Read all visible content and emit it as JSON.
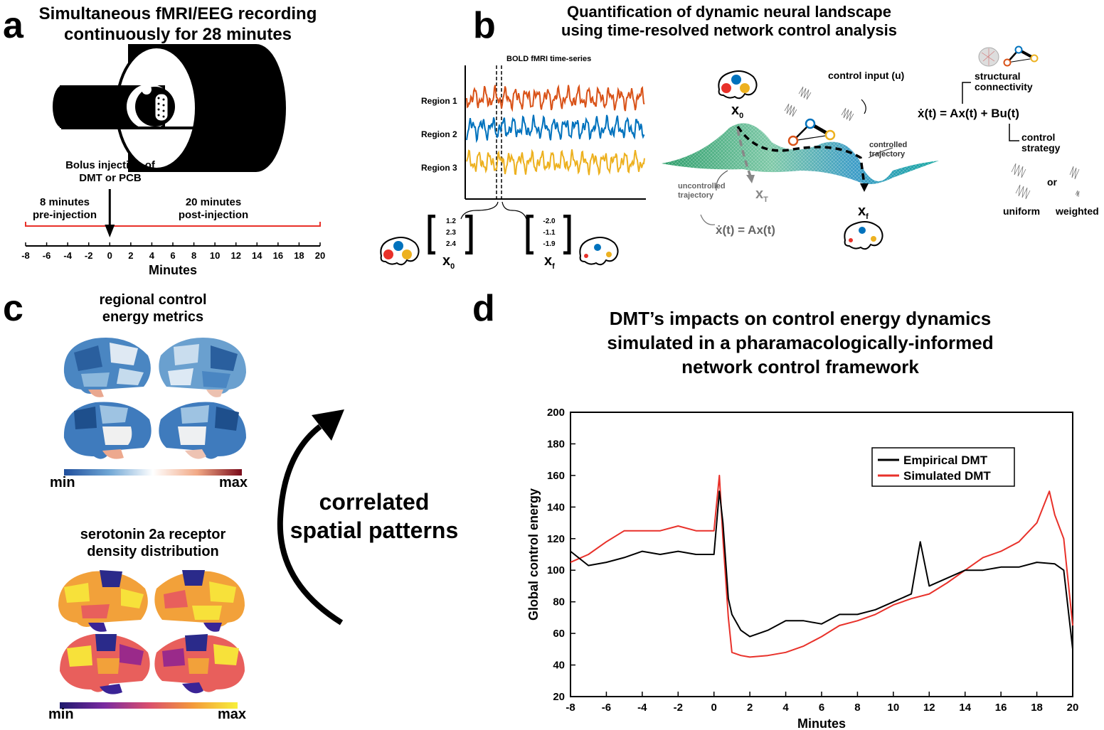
{
  "panel_a": {
    "letter": "a",
    "title_line1": "Simultaneous fMRI/EEG recording",
    "title_line2": "continuously for 28 minutes",
    "injection_line1": "Bolus injection of",
    "injection_line2": "DMT or PCB",
    "pre_line1": "8 minutes",
    "pre_line2": "pre-injection",
    "post_line1": "20 minutes",
    "post_line2": "post-injection",
    "ticks": [
      "-8",
      "-6",
      "-4",
      "-2",
      "0",
      "2",
      "4",
      "6",
      "8",
      "10",
      "12",
      "14",
      "16",
      "18",
      "20"
    ],
    "xlabel": "Minutes",
    "timeline_color": "#e8312a"
  },
  "panel_b": {
    "letter": "b",
    "title_line1": "Quantification of dynamic neural landscape",
    "title_line2": "using time-resolved network control analysis",
    "bold_label": "BOLD fMRI time-series",
    "regions": [
      {
        "label": "Region 1",
        "color": "#d95319"
      },
      {
        "label": "Region 2",
        "color": "#0072bd"
      },
      {
        "label": "Region 3",
        "color": "#edb120"
      }
    ],
    "x0_values": [
      "1.2",
      "2.3",
      "2.4"
    ],
    "xf_values": [
      "-2.0",
      "-1.1",
      "-1.9"
    ],
    "x0_label": "x",
    "x0_sub": "0",
    "xf_label": "x",
    "xf_sub": "f",
    "xT_label": "x",
    "xT_sub": "T",
    "control_input": "control input (u)",
    "controlled_line1": "controlled",
    "controlled_line2": "trajectory",
    "uncontrolled_line1": "uncontrolled",
    "uncontrolled_line2": "trajectory",
    "eq_uncontrolled": "ẋ(t) = Ax(t)",
    "eq_main": "ẋ(t) = Ax(t) + Bu(t)",
    "structural_line1": "structural",
    "structural_line2": "connectivity",
    "strategy_line1": "control",
    "strategy_line2": "strategy",
    "or": "or",
    "uniform": "uniform",
    "weighted": "weighted"
  },
  "panel_c": {
    "letter": "c",
    "title1_line1": "regional control",
    "title1_line2": "energy metrics",
    "cbar1_min": "min",
    "cbar1_max": "max",
    "title2_line1": "serotonin 2a receptor",
    "title2_line2": "density distribution",
    "cbar2_min": "min",
    "cbar2_max": "max",
    "correlated_line1": "correlated",
    "correlated_line2": "spatial patterns"
  },
  "panel_d": {
    "letter": "d",
    "title_line1": "DMT’s impacts on control energy dynamics",
    "title_line2": "simulated in a pharamacologically-informed",
    "title_line3": "network control framework"
  },
  "chart_data": {
    "type": "line",
    "xlabel": "Minutes",
    "ylabel": "Global control energy",
    "xlim": [
      -8,
      20
    ],
    "ylim": [
      20,
      200
    ],
    "xticks": [
      -8,
      -6,
      -4,
      -2,
      0,
      2,
      4,
      6,
      8,
      10,
      12,
      14,
      16,
      18,
      20
    ],
    "yticks": [
      20,
      40,
      60,
      80,
      100,
      120,
      140,
      160,
      180,
      200
    ],
    "legend_position": "top-right",
    "series": [
      {
        "name": "Empirical DMT",
        "color": "#000000",
        "x": [
          -8,
          -7,
          -6,
          -5,
          -4,
          -3,
          -2,
          -1,
          0,
          0.3,
          0.5,
          0.8,
          1,
          1.5,
          2,
          3,
          4,
          5,
          6,
          7,
          8,
          9,
          10,
          11,
          11.5,
          12,
          13,
          14,
          15,
          16,
          17,
          18,
          19,
          19.5,
          20
        ],
        "y": [
          112,
          103,
          105,
          108,
          112,
          110,
          112,
          110,
          110,
          150,
          130,
          82,
          72,
          62,
          58,
          62,
          68,
          68,
          66,
          72,
          72,
          75,
          80,
          85,
          118,
          90,
          95,
          100,
          100,
          102,
          102,
          105,
          104,
          100,
          50
        ]
      },
      {
        "name": "Simulated DMT",
        "color": "#e8312a",
        "x": [
          -8,
          -7,
          -6,
          -5,
          -4,
          -3,
          -2,
          -1,
          0,
          0.3,
          0.5,
          0.8,
          1,
          1.5,
          2,
          3,
          4,
          5,
          6,
          7,
          8,
          9,
          10,
          11,
          12,
          13,
          14,
          15,
          16,
          17,
          18,
          18.7,
          19,
          19.5,
          20
        ],
        "y": [
          105,
          110,
          118,
          125,
          125,
          125,
          128,
          125,
          125,
          160,
          120,
          70,
          48,
          46,
          45,
          46,
          48,
          52,
          58,
          65,
          68,
          72,
          78,
          82,
          85,
          92,
          100,
          108,
          112,
          118,
          130,
          150,
          135,
          120,
          65
        ]
      }
    ]
  }
}
